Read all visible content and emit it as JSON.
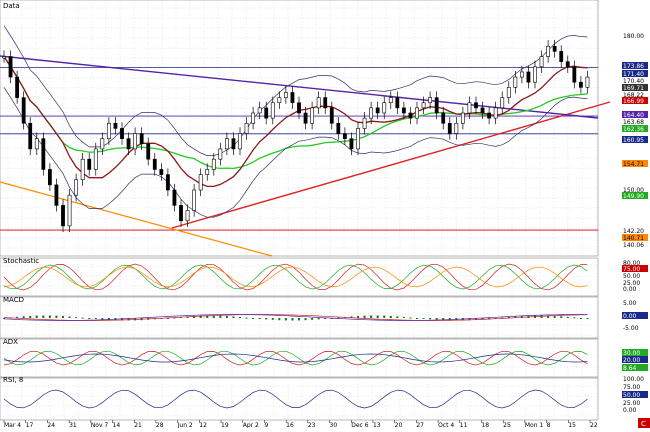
{
  "chart_data": {
    "type": "candlestick",
    "panels": [
      {
        "name": "Data",
        "yticks": [
          180.0,
          150.0
        ],
        "price_labels": [
          {
            "text": "173.86",
            "bg": "#1a2a8a",
            "fg": "#ffffff"
          },
          {
            "text": "171.40",
            "bg": "#1a2a8a",
            "fg": "#ffffff"
          },
          {
            "text": "170.40",
            "bg": "#ffffff",
            "fg": "#000000"
          },
          {
            "text": "169.71",
            "bg": "#333333",
            "fg": "#ffffff"
          },
          {
            "text": "168.22",
            "bg": "#ffffff",
            "fg": "#000000"
          },
          {
            "text": "166.99",
            "bg": "#cc0000",
            "fg": "#ffffff"
          },
          {
            "text": "164.40",
            "bg": "#5522aa",
            "fg": "#ffffff"
          },
          {
            "text": "163.68",
            "bg": "#ffffff",
            "fg": "#000000"
          },
          {
            "text": "162.36",
            "bg": "#22aa22",
            "fg": "#ffffff"
          },
          {
            "text": "160.95",
            "bg": "#1a2a8a",
            "fg": "#ffffff"
          },
          {
            "text": "154.71",
            "bg": "#ff8800",
            "fg": "#000000"
          },
          {
            "text": "149.90",
            "bg": "#22aa22",
            "fg": "#ffffff"
          },
          {
            "text": "142.20",
            "bg": "#ffffff",
            "fg": "#000000"
          },
          {
            "text": "140.71",
            "bg": "#ff8800",
            "fg": "#000000"
          },
          {
            "text": "140.06",
            "bg": "#ffffff",
            "fg": "#000000"
          }
        ]
      },
      {
        "name": "Stochastic",
        "labels": [
          {
            "text": "80.00",
            "bg": "#ffffff",
            "fg": "#000000"
          },
          {
            "text": "75.00",
            "bg": "#cc0000",
            "fg": "#ffffff"
          },
          {
            "text": "50.00",
            "bg": "#ffffff",
            "fg": "#000000"
          },
          {
            "text": "25.00",
            "bg": "#ffffff",
            "fg": "#000000"
          },
          {
            "text": "0.00",
            "bg": "#ffffff",
            "fg": "#000000"
          }
        ]
      },
      {
        "name": "MACD",
        "labels": [
          {
            "text": "5.00",
            "bg": "#ffffff",
            "fg": "#000000"
          },
          {
            "text": "0.00",
            "bg": "#1a2a8a",
            "fg": "#ffffff"
          },
          {
            "text": "-5.00",
            "bg": "#ffffff",
            "fg": "#000000"
          }
        ]
      },
      {
        "name": "ADX",
        "labels": [
          {
            "text": "30.00",
            "bg": "#22aa22",
            "fg": "#ffffff"
          },
          {
            "text": "20.00",
            "bg": "#1a2a8a",
            "fg": "#ffffff"
          },
          {
            "text": "8.64",
            "bg": "#22aa22",
            "fg": "#ffffff"
          }
        ]
      },
      {
        "name": "RSI, 8",
        "labels": [
          {
            "text": "100.00",
            "bg": "#ffffff",
            "fg": "#000000"
          },
          {
            "text": "75.00",
            "bg": "#ffffff",
            "fg": "#000000"
          },
          {
            "text": "50.00",
            "bg": "#1a2a8a",
            "fg": "#ffffff"
          },
          {
            "text": "25.00",
            "bg": "#ffffff",
            "fg": "#000000"
          },
          {
            "text": "0.00",
            "bg": "#ffffff",
            "fg": "#000000"
          }
        ]
      }
    ],
    "x_ticks": [
      "Mar 4",
      "17",
      "24",
      "31",
      "Nov 7",
      "14",
      "21",
      "28",
      "Jun 2",
      "12",
      "19",
      "Apr 2",
      "9",
      "16",
      "23",
      "30",
      "Dec 6",
      "13",
      "20",
      "27",
      "Oct 4",
      "11",
      "18",
      "25",
      "Mon 1",
      "8",
      "15",
      "22"
    ],
    "candles_close": [
      176,
      172,
      168,
      163,
      158,
      160,
      154,
      151,
      147,
      143,
      149,
      152,
      156,
      154,
      158,
      160,
      163,
      162,
      160,
      158,
      161,
      159,
      156,
      154,
      153,
      150,
      147,
      144,
      146,
      150,
      153,
      154,
      156,
      158,
      160,
      158,
      161,
      163,
      165,
      166,
      164,
      167,
      168,
      169,
      167,
      165,
      163,
      166,
      168,
      166,
      163,
      161,
      160,
      158,
      162,
      164,
      166,
      165,
      167,
      168,
      166,
      165,
      164,
      166,
      167,
      168,
      165,
      163,
      161,
      163,
      165,
      167,
      166,
      165,
      164,
      166,
      168,
      170,
      172,
      173,
      171,
      174,
      176,
      178,
      177,
      175,
      174,
      171,
      170,
      172
    ],
    "colors": {
      "ma_green": "#22cc22",
      "ma_purple": "#5522aa",
      "ma_maroon": "#8b1a1a",
      "trend_red": "#dd2222",
      "trend_orange": "#ff8800",
      "bands": "#333366"
    }
  },
  "ui": {
    "corner_label": "C"
  }
}
